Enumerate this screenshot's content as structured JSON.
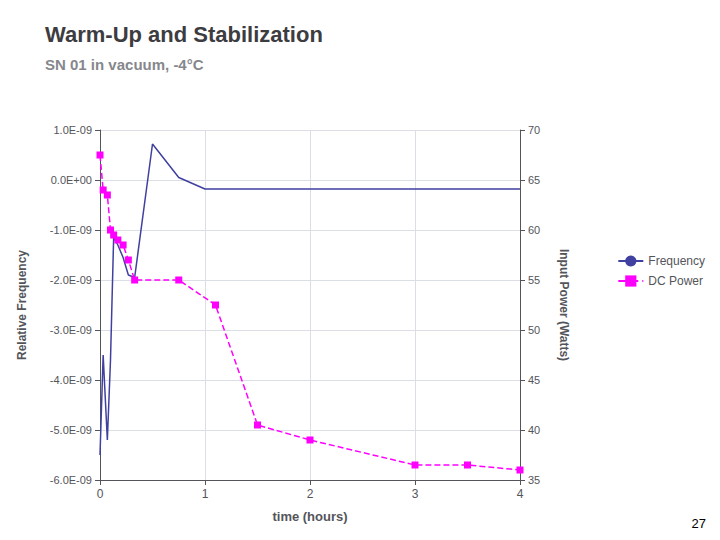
{
  "chart_data": {
    "type": "line",
    "title": "Warm-Up and Stabilization",
    "subtitle": "SN 01 in vacuum, -4°C",
    "xlabel": "time (hours)",
    "ylabel": "Relative Frequency",
    "y2label": "Input Power (Watts)",
    "xlim": [
      0,
      4
    ],
    "xticks": [
      0,
      1,
      2,
      3,
      4
    ],
    "ylim": [
      -6e-09,
      1e-09
    ],
    "yticks": [
      {
        "value": -6e-09,
        "label": "-6.0E-09"
      },
      {
        "value": -5e-09,
        "label": "-5.0E-09"
      },
      {
        "value": -4e-09,
        "label": "-4.0E-09"
      },
      {
        "value": -3e-09,
        "label": "-3.0E-09"
      },
      {
        "value": -2e-09,
        "label": "-2.0E-09"
      },
      {
        "value": -1e-09,
        "label": "-1.0E-09"
      },
      {
        "value": 0.0,
        "label": "0.0E+00"
      },
      {
        "value": 1e-09,
        "label": "1.0E-09"
      }
    ],
    "y2lim": [
      35,
      70
    ],
    "y2ticks": [
      35,
      40,
      45,
      50,
      55,
      60,
      65,
      70
    ],
    "grid": true,
    "legend": "right",
    "annotations": [
      "27"
    ],
    "series": [
      {
        "name": "Frequency",
        "color": "#4040a0",
        "line_style": "solid",
        "marker": "none",
        "x": [
          0.0,
          0.03,
          0.07,
          0.1,
          0.13,
          0.17,
          0.22,
          0.27,
          0.33,
          0.5,
          0.75,
          1.0,
          1.25,
          1.5,
          2.0,
          2.5,
          3.0,
          3.5,
          4.0
        ],
        "values": [
          -5.5e-09,
          -3.5e-09,
          -5.2e-09,
          -3.6e-09,
          -1.15e-09,
          -1.3e-09,
          -1.55e-09,
          -1.9e-09,
          -1.95e-09,
          7.2e-10,
          5e-11,
          -1.8e-10,
          -1.8e-10,
          -1.8e-10,
          -1.8e-10,
          -1.8e-10,
          -1.8e-10,
          -1.8e-10,
          -1.8e-10
        ]
      },
      {
        "name": "DC Power",
        "color": "#ff00ff",
        "line_style": "dashed",
        "marker": "square",
        "axis": "y2",
        "x": [
          0.0,
          0.03,
          0.07,
          0.1,
          0.13,
          0.17,
          0.22,
          0.27,
          0.33,
          0.75,
          1.1,
          1.5,
          2.0,
          3.0,
          3.5,
          4.0
        ],
        "values": [
          67.5,
          64.0,
          63.5,
          60.0,
          59.5,
          59.0,
          58.5,
          57.0,
          55.0,
          55.0,
          52.5,
          40.5,
          39.0,
          36.5,
          36.5,
          36.0
        ]
      }
    ]
  }
}
